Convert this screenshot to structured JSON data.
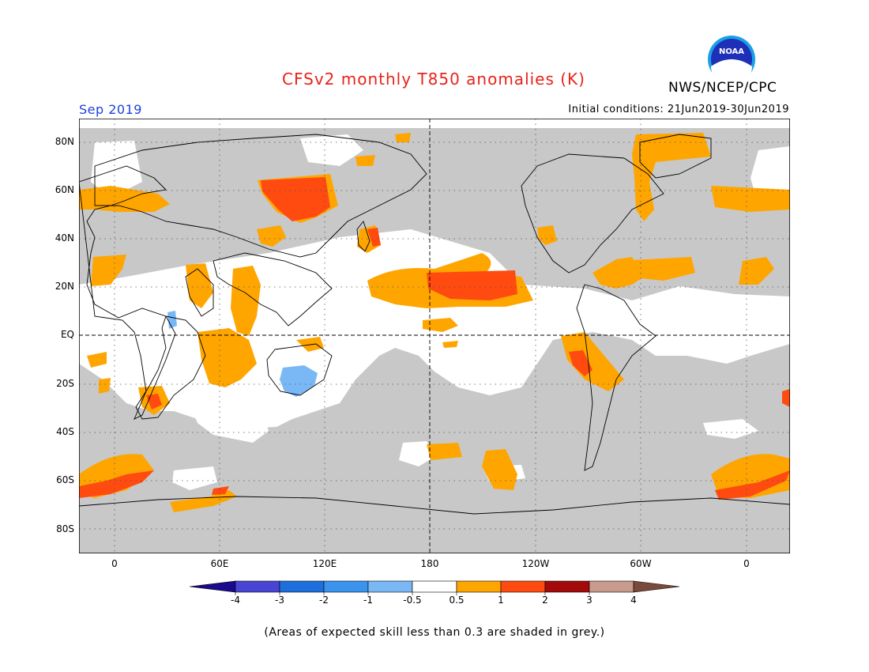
{
  "header": {
    "title": "CFSv2 monthly T850 anomalies (K)",
    "organization": "NWS/NCEP/CPC",
    "logo_text": "NOAA",
    "target_month": "Sep 2019",
    "initial_conditions": "Initial conditions: 21Jun2019-30Jun2019"
  },
  "map": {
    "projection": "equirectangular",
    "lon_range": [
      -20,
      380
    ],
    "lat_range": [
      -90,
      90
    ],
    "latitude_labels": [
      "80N",
      "60N",
      "40N",
      "20N",
      "EQ",
      "20S",
      "40S",
      "60S",
      "80S"
    ],
    "longitude_labels": [
      "0",
      "60E",
      "120E",
      "180",
      "120W",
      "60W",
      "0"
    ],
    "grid": "dotted",
    "reference_lines": [
      "Equator",
      "180 meridian"
    ],
    "low_skill_color": "#c8c8c8",
    "anomaly_regions": [
      {
        "level": "0.5 to 1",
        "color": "#ffa500",
        "area": "Central and eastern tropical Pacific"
      },
      {
        "level": "1 to 2",
        "color": "#ff4a10",
        "area": "Central North Pacific near Hawaii"
      },
      {
        "level": "1 to 2",
        "color": "#ff4a10",
        "area": "Central Siberia"
      },
      {
        "level": "0.5 to 1",
        "color": "#ffa500",
        "area": "Eastern Greenland"
      },
      {
        "level": "0.5 to 1",
        "color": "#ffa500",
        "area": "Southeast Pacific off South America"
      },
      {
        "level": "1 to 2",
        "color": "#ff4a10",
        "area": "Southern Ocean south of Africa"
      },
      {
        "level": "-1 to -0.5",
        "color": "#7ab8f5",
        "area": "Northwestern Australia"
      }
    ]
  },
  "colorbar": {
    "colors": [
      "#1a0a8e",
      "#4a44d4",
      "#1e6fdc",
      "#3a93ec",
      "#7ab8f5",
      "#ffffff",
      "#ffa500",
      "#ff4a10",
      "#a30a0a",
      "#c89b8c",
      "#7a4a3a"
    ],
    "tick_labels": [
      "-4",
      "-3",
      "-2",
      "-1",
      "-0.5",
      "0.5",
      "1",
      "2",
      "3",
      "4"
    ]
  },
  "footnote": "(Areas of expected skill less than 0.3 are shaded in grey.)"
}
